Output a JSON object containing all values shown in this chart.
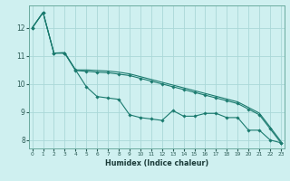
{
  "xlabel": "Humidex (Indice chaleur)",
  "bg_color": "#cff0f0",
  "grid_color": "#aad8d8",
  "line_color": "#1a7a6e",
  "x_values": [
    0,
    1,
    2,
    3,
    4,
    5,
    6,
    7,
    8,
    9,
    10,
    11,
    12,
    13,
    14,
    15,
    16,
    17,
    18,
    19,
    20,
    21,
    22,
    23
  ],
  "s1": [
    12.0,
    12.55,
    11.1,
    11.1,
    10.5,
    9.9,
    9.55,
    9.5,
    9.45,
    8.9,
    8.8,
    8.75,
    8.7,
    9.05,
    8.85,
    8.85,
    8.95,
    8.95,
    8.8,
    8.8,
    8.35,
    8.35,
    8.0,
    7.9
  ],
  "s2": [
    12.0,
    12.55,
    11.1,
    11.1,
    10.48,
    10.45,
    10.42,
    10.4,
    10.35,
    10.3,
    10.2,
    10.1,
    10.0,
    9.9,
    9.8,
    9.7,
    9.6,
    9.5,
    9.4,
    9.3,
    9.1,
    8.9,
    8.4,
    7.9
  ],
  "s3": [
    12.0,
    12.55,
    11.1,
    11.12,
    10.5,
    10.5,
    10.48,
    10.46,
    10.42,
    10.36,
    10.26,
    10.16,
    10.06,
    9.96,
    9.86,
    9.76,
    9.66,
    9.56,
    9.46,
    9.36,
    9.16,
    8.96,
    8.46,
    7.95
  ],
  "ylim": [
    7.7,
    12.8
  ],
  "xlim": [
    -0.3,
    23.3
  ],
  "yticks": [
    8,
    9,
    10,
    11,
    12
  ],
  "xticks": [
    0,
    1,
    2,
    3,
    4,
    5,
    6,
    7,
    8,
    9,
    10,
    11,
    12,
    13,
    14,
    15,
    16,
    17,
    18,
    19,
    20,
    21,
    22,
    23
  ]
}
